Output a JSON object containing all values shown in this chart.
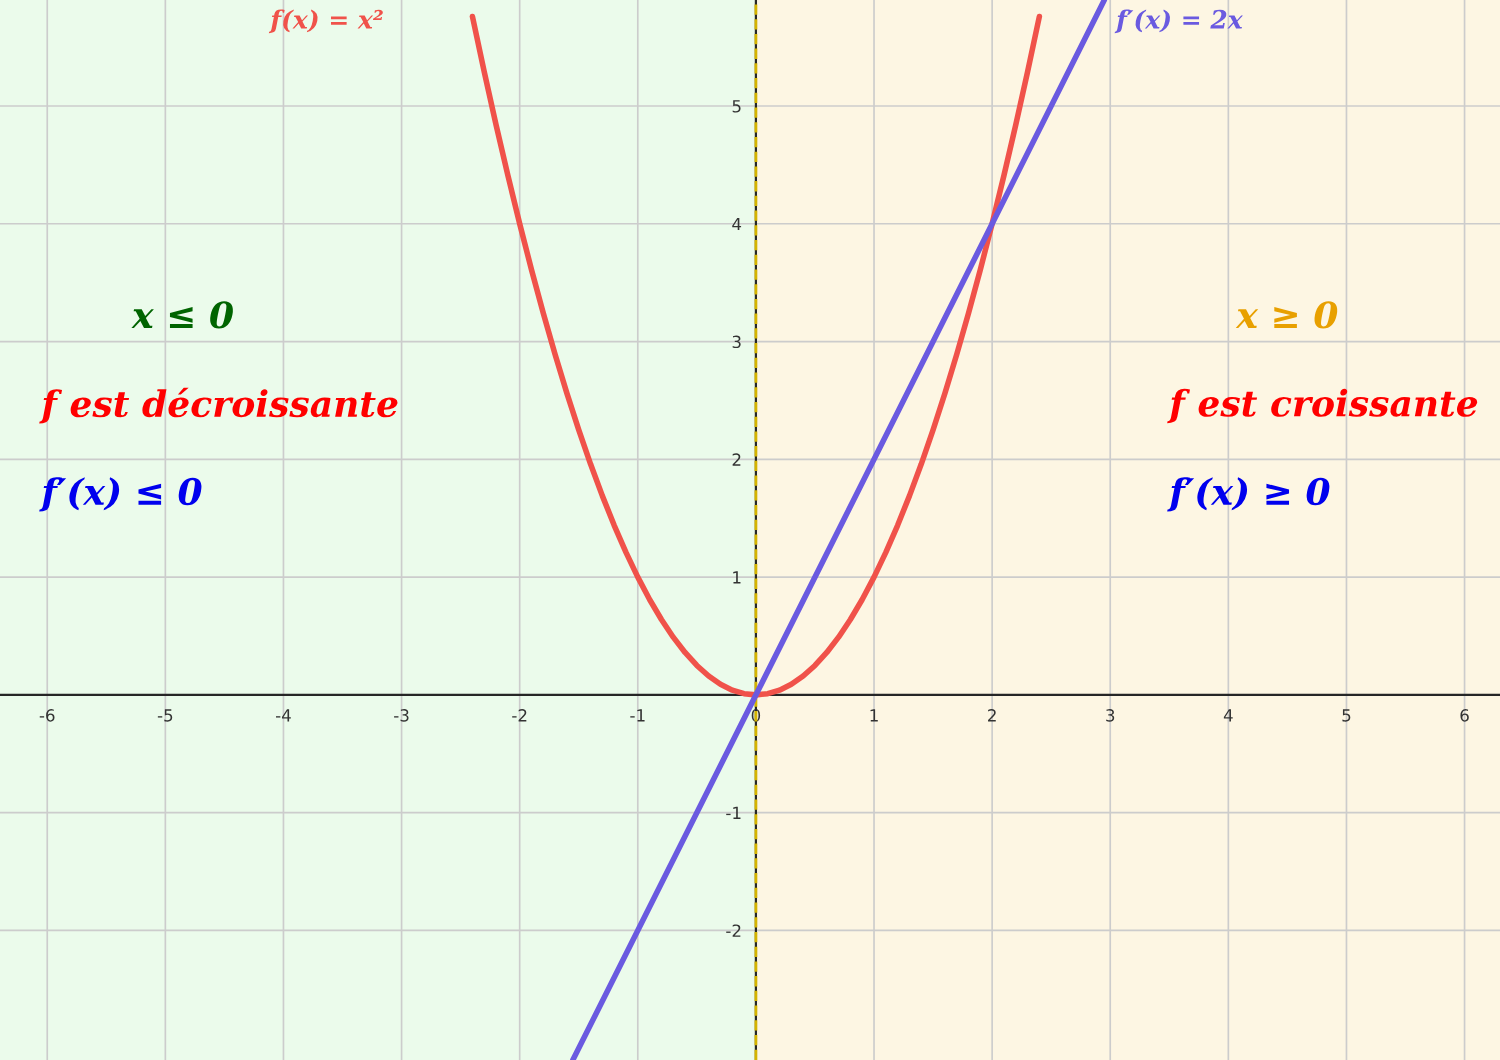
{
  "chart_data": {
    "type": "line",
    "x": [
      -2.4,
      -2.3,
      -2.2,
      -2.1,
      -2.0,
      -1.9,
      -1.8,
      -1.7,
      -1.6,
      -1.5,
      -1.4,
      -1.3,
      -1.2,
      -1.1,
      -1.0,
      -0.9,
      -0.8,
      -0.7,
      -0.6,
      -0.5,
      -0.4,
      -0.3,
      -0.2,
      -0.1,
      0.0,
      0.1,
      0.2,
      0.3,
      0.4,
      0.5,
      0.6,
      0.7,
      0.8,
      0.9,
      1.0,
      1.1,
      1.2,
      1.3,
      1.4,
      1.5,
      1.6,
      1.7,
      1.8,
      1.9,
      2.0,
      2.1,
      2.2,
      2.3,
      2.4
    ],
    "series": [
      {
        "name": "f(x) = x²",
        "color": "#f0524a",
        "values": [
          5.76,
          5.29,
          4.84,
          4.41,
          4.0,
          3.61,
          3.24,
          2.89,
          2.56,
          2.25,
          1.96,
          1.69,
          1.44,
          1.21,
          1.0,
          0.81,
          0.64,
          0.49,
          0.36,
          0.25,
          0.16,
          0.09,
          0.04,
          0.01,
          0.0,
          0.01,
          0.04,
          0.09,
          0.16,
          0.25,
          0.36,
          0.49,
          0.64,
          0.81,
          1.0,
          1.21,
          1.44,
          1.69,
          1.96,
          2.25,
          2.56,
          2.89,
          3.24,
          3.61,
          4.0,
          4.41,
          4.84,
          5.29,
          5.76
        ]
      },
      {
        "name": "f′(x) = 2x",
        "color": "#6a5ae0",
        "x": [
          -1.55,
          2.95
        ],
        "values": [
          -3.1,
          5.9
        ]
      }
    ],
    "annotations": [
      "x ≤ 0",
      "f est décroissante",
      "f′(x) ≤ 0",
      "x ≥ 0",
      "f est croissante",
      "f′(x) ≥ 0"
    ],
    "bands": [
      {
        "axis": "x",
        "from": -6.4,
        "to": 0,
        "color": "#ebfbeb"
      },
      {
        "axis": "x",
        "from": 0,
        "to": 6.3,
        "color": "#fdf6e3"
      }
    ],
    "ref_lines": [
      {
        "axis": "x",
        "value": 0,
        "color": "#d4b400",
        "line_style": "dashed"
      }
    ],
    "xlim": [
      -6.4,
      6.3
    ],
    "ylim": [
      -3.1,
      5.9
    ],
    "xticks": [
      -6,
      -5,
      -4,
      -3,
      -2,
      -1,
      0,
      1,
      2,
      3,
      4,
      5,
      6
    ],
    "yticks": [
      -2,
      -1,
      1,
      2,
      3,
      4,
      5
    ],
    "grid": true,
    "legend": false,
    "marker": "none",
    "line_style": "solid"
  }
}
